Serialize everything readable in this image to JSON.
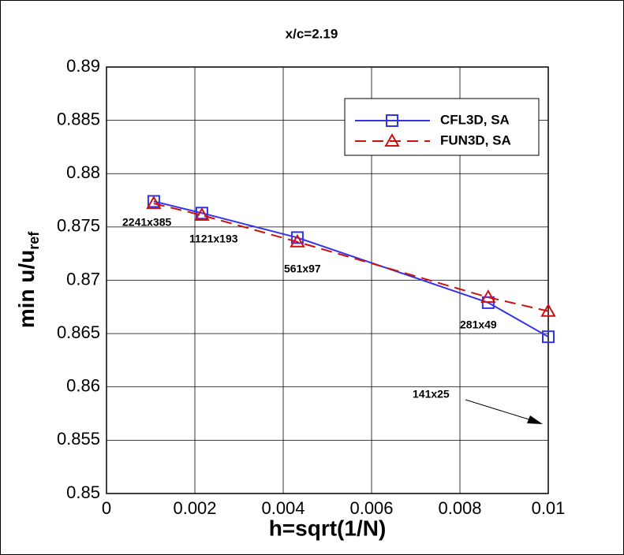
{
  "chart_data": {
    "type": "line",
    "title": "x/c=2.19",
    "xlabel": "h=sqrt(1/N)",
    "ylabel": {
      "text": "min u/u",
      "subscript": "ref"
    },
    "xlim": [
      0,
      0.01
    ],
    "ylim": [
      0.85,
      0.89
    ],
    "xticks": [
      0,
      0.002,
      0.004,
      0.006,
      0.008,
      0.01
    ],
    "yticks": [
      0.85,
      0.855,
      0.86,
      0.865,
      0.87,
      0.875,
      0.88,
      0.885,
      0.89
    ],
    "grid": true,
    "legend": "upper right",
    "series": [
      {
        "name": "CFL3D, SA",
        "color": "#3333ee",
        "marker": "square",
        "dash": "solid",
        "x": [
          0.00107,
          0.00216,
          0.00432,
          0.00864,
          0.01
        ],
        "values": [
          0.8774,
          0.8763,
          0.874,
          0.8679,
          0.8647
        ]
      },
      {
        "name": "FUN3D, SA",
        "color": "#cc1111",
        "marker": "triangle",
        "dash": "dashed",
        "x": [
          0.00107,
          0.00216,
          0.00432,
          0.00864,
          0.01
        ],
        "values": [
          0.8772,
          0.8761,
          0.8736,
          0.8684,
          0.8671
        ]
      }
    ],
    "annotations": [
      "2241x385",
      "1121x193",
      "561x97",
      "281x49",
      "141x25"
    ]
  }
}
